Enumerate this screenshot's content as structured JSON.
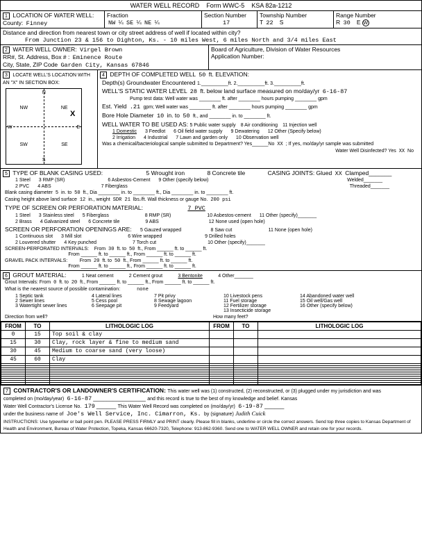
{
  "form_title": "WATER WELL RECORD",
  "form_no": "Form WWC-5",
  "ksa": "KSA 82a-1212",
  "section1": {
    "title": "LOCATION OF WATER WELL:",
    "county_label": "County:",
    "county": "Finney",
    "fraction_label": "Fraction",
    "frac1": "NW",
    "frac1b": "SE",
    "frac1c": "NE",
    "section_label": "Section Number",
    "section": "17",
    "township_label": "Township Number",
    "township_t": "T",
    "township": "22",
    "township_s": "S",
    "range_label": "Range Number",
    "range_r": "R",
    "range": "30",
    "range_e": "E",
    "range_w": "W",
    "dist_label": "Distance and direction from nearest town or city street address of well if located within city?",
    "distance": "From Junction 23 & 156 to Dighton, Ks. - 10 miles West, 6 miles North and 3/4 miles East"
  },
  "section2": {
    "title": "WATER WELL OWNER:",
    "owner": "Virgel Brown",
    "addr_label": "RR#, St. Address, Box # :",
    "addr": "Eminence Route",
    "city_label": "City, State, ZIP Code",
    "city": "Garden City, Kansas 67846",
    "board": "Board of Agriculture, Division of Water Resources",
    "app_label": "Application Number:"
  },
  "section3": {
    "title": "LOCATE WELL'S LOCATION WITH AN \"X\" IN SECTION BOX:",
    "nw": "NW",
    "ne": "NE",
    "sw": "SW",
    "se": "SE",
    "n": "N",
    "s": "S",
    "e": "E",
    "w": "W"
  },
  "section4": {
    "title": "DEPTH OF COMPLETED WELL",
    "depth": "50",
    "elev_label": "ft. ELEVATION:",
    "gw_label": "Depth(s) Groundwater Encountered",
    "gw1": "1.__________ft. 2.__________ft. 3.__________ft.",
    "static_label": "WELL'S STATIC WATER LEVEL",
    "static": "28",
    "static_after": "ft. below land surface measured on mo/day/yr",
    "static_date": "6-16-87",
    "pump_label": "Pump test data: Well water was ________ ft. after ________ hours pumping ________ gpm",
    "est_label": "Est. Yield",
    "est_yield": ".21",
    "est_after": "gpm; Well water was ________ ft. after ________ hours pumping ________ gpm",
    "bore_label": "Bore Hole Diameter",
    "bore": "10",
    "bore_to": "in. to",
    "bore_to_ft": "50",
    "bore_after": "ft., and ________ in. to ________ ft.",
    "use_label": "WELL WATER TO BE USED AS:",
    "use1": "1 Domestic",
    "use2": "2 Irrigation",
    "use3": "3 Feedlot",
    "use4": "4 Industrial",
    "use5": "5 Public water supply",
    "use6": "6 Oil field water supply",
    "use7": "7 Lawn and garden only",
    "use8": "8 Air conditioning",
    "use9": "9 Dewatering",
    "use10": "10 Observation well",
    "use11": "11 Injection well",
    "use12": "12 Other (Specify below)",
    "bact_label": "Was a chemical/bacteriological sample submitted to Department? Yes______No",
    "bact_no": "XX",
    "bact_after": "; If yes, mo/day/yr sample was submitted",
    "disinfect": "Water Well Disinfected? Yes",
    "disinfect_yes": "XX",
    "disinfect_no": "No"
  },
  "section5": {
    "title": "TYPE OF BLANK CASING USED:",
    "c1": "1 Steel",
    "c2": "2 PVC",
    "c3": "3 RMP (SR)",
    "c4": "4 ABS",
    "c5": "5 Wrought iron",
    "c6": "6 Asbestos-Cement",
    "c7": "7 Fiberglass",
    "c8": "8 Concrete tile",
    "c9": "9 Other (specify below)",
    "joints": "CASING JOINTS: Glued",
    "joints_v": "XX",
    "joints2": "Clamped_______",
    "joints3": "Welded_______",
    "joints4": "Threaded_______",
    "blank_dia_label": "Blank casing diameter",
    "blank_dia": "5",
    "blank_to": "in. to",
    "blank_to_v": "50",
    "blank_after": "ft., Dia ________ in. to ________ ft., Dia ________ in. to ________ ft.",
    "height_label": "Casing height above land surface",
    "height": "12",
    "height_in": "in., weight",
    "weight": "SDR 21",
    "weight_after": "lbs./ft. Wall thickness or gauge No.",
    "gauge": "200 psi",
    "screen_label": "TYPE OF SCREEN OR PERFORATION MATERIAL:",
    "screen_val": "7 PVC",
    "s1": "1 Steel",
    "s2": "2 Brass",
    "s3": "3 Stainless steel",
    "s4": "4 Galvanized steel",
    "s5": "5 Fiberglass",
    "s6": "6 Concrete tile",
    "s7": "7 PVC",
    "s8": "8 RMP (SR)",
    "s9": "9 ABS",
    "s10": "10 Asbestos-cement",
    "s11": "11 Other (specify)_______",
    "s12": "12 None used (open hole)",
    "open_label": "SCREEN OR PERFORATION OPENINGS ARE:",
    "o1": "1 Continuous slot",
    "o2": "2 Louvered shutter",
    "o3": "3 Mill slot",
    "o4": "4 Key punched",
    "o5": "5 Gauzed wrapped",
    "o6": "6 Wire wrapped",
    "o7": "7 Torch cut",
    "o8": "8 Saw cut",
    "o9": "9 Drilled holes",
    "o10": "10 Other (specify)_______",
    "o11": "11 None (open hole)",
    "perf_label": "SCREEN-PERFORATED INTERVALS:",
    "perf_from": "30",
    "perf_to": "50",
    "gravel_label": "GRAVEL PACK INTERVALS:",
    "gravel_from": "20",
    "gravel_to": "50"
  },
  "section6": {
    "title": "GROUT MATERIAL:",
    "g1": "1 Neat cement",
    "g2": "2 Cement grout",
    "g3": "3 Bentonite",
    "g4": "4 Other_______",
    "grout_label": "Grout Intervals:   From",
    "grout_from": "0",
    "grout_to": "20",
    "contam_label": "What is the nearest source of possible contamination:",
    "contam": "none",
    "cs1": "1 Septic tank",
    "cs2": "2 Sewer lines",
    "cs3": "3 Watertight sewer lines",
    "cs4": "4 Lateral lines",
    "cs5": "5 Cess pool",
    "cs6": "6 Seepage pit",
    "cs7": "7 Pit privy",
    "cs8": "8 Sewage lagoon",
    "cs9": "9 Feedyard",
    "cs10": "10 Livestock pens",
    "cs11": "11 Fuel storage",
    "cs12": "12 Fertilizer storage",
    "cs13": "13 Insecticide storage",
    "cs14": "14 Abandoned water well",
    "cs15": "15 Oil well/Gas well",
    "cs16": "16 Other (specify below)",
    "dir_label": "Direction from well?",
    "feet_label": "How many feet?"
  },
  "log": {
    "h_from": "FROM",
    "h_to": "TO",
    "h_log": "LITHOLOGIC LOG",
    "rows": [
      {
        "from": "0",
        "to": "15",
        "log": "Top soil & clay"
      },
      {
        "from": "15",
        "to": "30",
        "log": "Clay, rock layer & fine to medium sand"
      },
      {
        "from": "30",
        "to": "45",
        "log": "Medium to coarse sand (very loose)"
      },
      {
        "from": "45",
        "to": "60",
        "log": "Clay"
      }
    ]
  },
  "section7": {
    "title": "CONTRACTOR'S OR LANDOWNER'S CERTIFICATION:",
    "text1": "This water well was (1) constructed, (2) reconstructed, or (3) plugged under my jurisdiction and was",
    "comp_label": "completed on (mo/day/year)",
    "comp_date": "6-16-87",
    "text2": "and this record is true to the best of my knowledge and belief. Kansas",
    "lic_label": "Water Well Contractor's License No.",
    "lic": "179",
    "text3": "This Water Well Record was completed on (mo/day/yr)",
    "rec_date": "6-19-87",
    "bus_label": "under the business name of",
    "business": "Joe's Well Service, Inc. Cimarron, Ks.",
    "sig_label": "by (signature)",
    "signature": "Judith Cuick",
    "instructions": "INSTRUCTIONS: Use typewriter or ball point pen. PLEASE PRESS FIRMLY and PRINT clearly. Please fill in blanks, underline or circle the correct answers. Send top three copies to Kansas Department of Health and Environment, Bureau of Water Protection, Topeka, Kansas 66620-7320, Telephone: 913-862-9360. Send one to WATER WELL OWNER and retain one for your records."
  }
}
